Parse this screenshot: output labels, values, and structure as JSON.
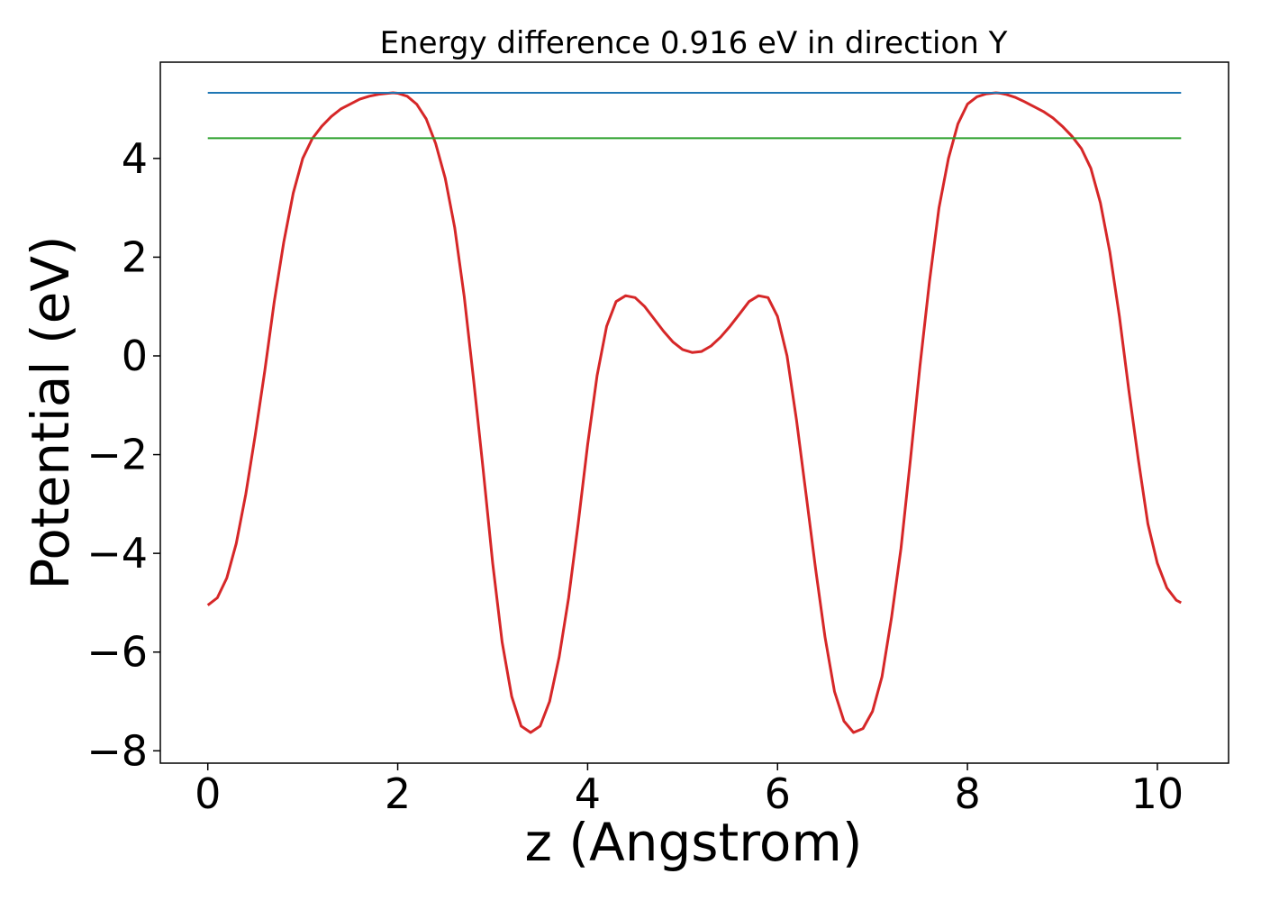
{
  "chart_data": {
    "type": "line",
    "title": "Energy difference 0.916 eV in direction Y",
    "xlabel": "z (Angstrom)",
    "ylabel": "Potential (eV)",
    "xlim": [
      -0.5,
      10.75
    ],
    "ylim": [
      -8.25,
      5.95
    ],
    "xticks": [
      0,
      2,
      4,
      6,
      8,
      10
    ],
    "xtick_labels": [
      "0",
      "2",
      "4",
      "6",
      "8",
      "10"
    ],
    "yticks": [
      -8,
      -6,
      -4,
      -2,
      0,
      2,
      4
    ],
    "ytick_labels": [
      "−8",
      "−6",
      "−4",
      "−2",
      "0",
      "2",
      "4"
    ],
    "grid": false,
    "series": [
      {
        "color": "#d62728",
        "x": [
          0,
          0.1,
          0.2,
          0.3,
          0.4,
          0.5,
          0.6,
          0.7,
          0.8,
          0.9,
          1.0,
          1.1,
          1.2,
          1.3,
          1.4,
          1.5,
          1.6,
          1.7,
          1.8,
          1.9,
          1.95,
          2.0,
          2.1,
          2.2,
          2.3,
          2.4,
          2.5,
          2.6,
          2.7,
          2.8,
          2.9,
          3.0,
          3.1,
          3.2,
          3.3,
          3.4,
          3.5,
          3.6,
          3.7,
          3.8,
          3.9,
          4.0,
          4.1,
          4.2,
          4.3,
          4.4,
          4.5,
          4.6,
          4.7,
          4.8,
          4.9,
          5.0,
          5.1,
          5.2,
          5.3,
          5.4,
          5.5,
          5.6,
          5.7,
          5.8,
          5.9,
          6.0,
          6.1,
          6.2,
          6.3,
          6.4,
          6.5,
          6.6,
          6.7,
          6.8,
          6.9,
          7.0,
          7.1,
          7.2,
          7.3,
          7.4,
          7.5,
          7.6,
          7.7,
          7.8,
          7.9,
          8.0,
          8.1,
          8.2,
          8.3,
          8.35,
          8.4,
          8.5,
          8.6,
          8.7,
          8.8,
          8.9,
          9.0,
          9.1,
          9.2,
          9.3,
          9.4,
          9.5,
          9.6,
          9.7,
          9.8,
          9.9,
          10.0,
          10.1,
          10.2,
          10.25
        ],
        "y": [
          -5.05,
          -4.9,
          -4.5,
          -3.8,
          -2.8,
          -1.6,
          -0.3,
          1.1,
          2.3,
          3.3,
          4.0,
          4.4,
          4.65,
          4.85,
          5.0,
          5.1,
          5.2,
          5.26,
          5.3,
          5.32,
          5.33,
          5.32,
          5.26,
          5.1,
          4.8,
          4.3,
          3.6,
          2.6,
          1.2,
          -0.5,
          -2.3,
          -4.2,
          -5.8,
          -6.9,
          -7.5,
          -7.63,
          -7.5,
          -7.0,
          -6.1,
          -4.9,
          -3.4,
          -1.8,
          -0.4,
          0.6,
          1.1,
          1.22,
          1.18,
          1.0,
          0.75,
          0.5,
          0.28,
          0.13,
          0.07,
          0.09,
          0.2,
          0.38,
          0.6,
          0.85,
          1.1,
          1.22,
          1.18,
          0.8,
          0.0,
          -1.3,
          -2.8,
          -4.3,
          -5.7,
          -6.8,
          -7.4,
          -7.63,
          -7.55,
          -7.2,
          -6.5,
          -5.3,
          -3.9,
          -2.1,
          -0.2,
          1.5,
          3.0,
          4.0,
          4.7,
          5.1,
          5.25,
          5.31,
          5.33,
          5.32,
          5.3,
          5.24,
          5.15,
          5.05,
          4.95,
          4.82,
          4.65,
          4.45,
          4.2,
          3.8,
          3.1,
          2.1,
          0.8,
          -0.7,
          -2.1,
          -3.4,
          -4.2,
          -4.7,
          -4.95,
          -5.0
        ]
      },
      {
        "color": "#1f77b4",
        "x": [
          0,
          10.25
        ],
        "y": [
          5.33,
          5.33
        ]
      },
      {
        "color": "#2ca02c",
        "x": [
          0,
          10.25
        ],
        "y": [
          4.41,
          4.41
        ]
      }
    ]
  }
}
